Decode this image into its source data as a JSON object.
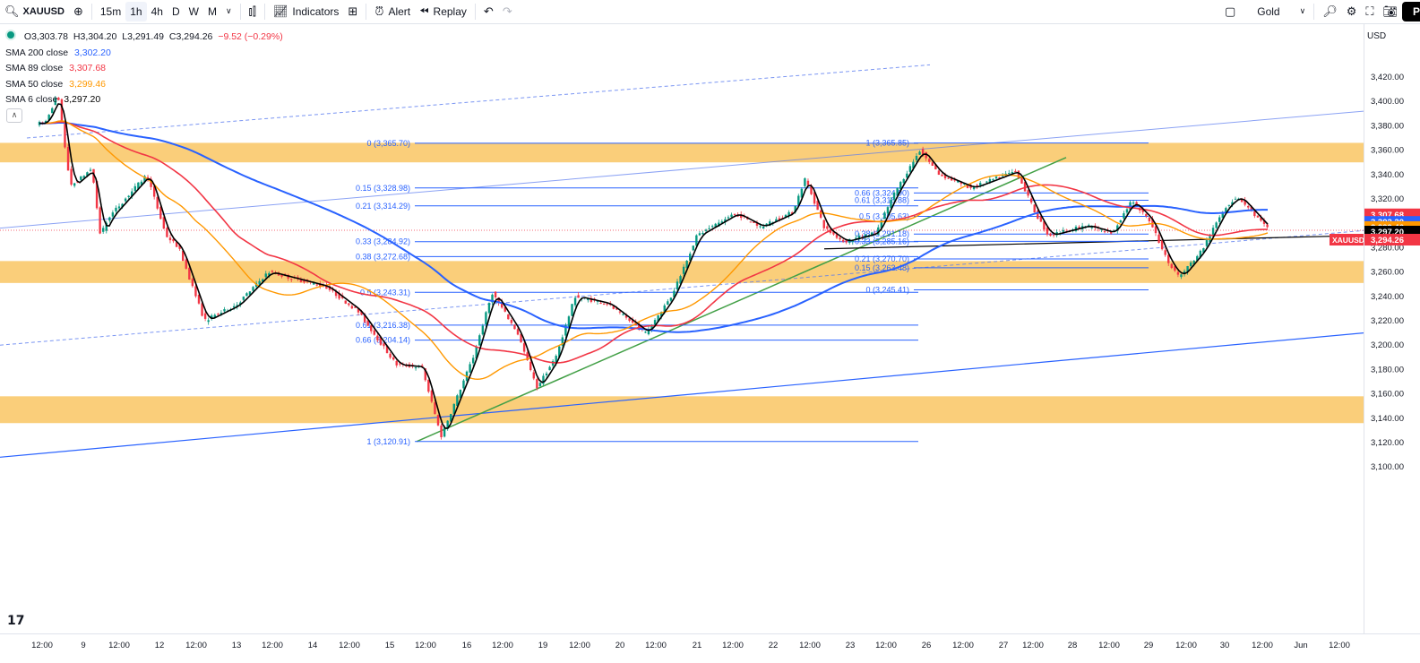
{
  "toolbar": {
    "symbol": "XAUUSD",
    "intervals": [
      "15m",
      "1h",
      "4h",
      "D",
      "W",
      "M"
    ],
    "selected_interval": "1h",
    "indicators_label": "Indicators",
    "alert_label": "Alert",
    "replay_label": "Replay",
    "layout_name": "Gold",
    "publish_label": "P"
  },
  "legend": {
    "ohlc": {
      "o": "O3,303.78",
      "h": "H3,304.20",
      "l": "L3,291.49",
      "c": "C3,294.26",
      "chg": "−9.52 (−0.29%)"
    },
    "smas": [
      {
        "label": "SMA 200 close",
        "value": "3,302.20",
        "color": "#2962ff"
      },
      {
        "label": "SMA 89 close",
        "value": "3,307.68",
        "color": "#f23645"
      },
      {
        "label": "SMA 50 close",
        "value": "3,299.46",
        "color": "#ff9800"
      },
      {
        "label": "SMA 6 close",
        "value": "3,297.20",
        "color": "#000000"
      }
    ]
  },
  "axis": {
    "currency": "USD",
    "price_ticks": [
      "3,420.00",
      "3,400.00",
      "3,380.00",
      "3,360.00",
      "3,340.00",
      "3,320.00",
      "3,300.00",
      "3,280.00",
      "3,260.00",
      "3,240.00",
      "3,220.00",
      "3,200.00",
      "3,180.00",
      "3,160.00",
      "3,140.00",
      "3,120.00",
      "3,100.00"
    ],
    "time_ticks": [
      "12:00",
      "9",
      "12:00",
      "12",
      "12:00",
      "13",
      "12:00",
      "14",
      "12:00",
      "15",
      "12:00",
      "16",
      "12:00",
      "19",
      "12:00",
      "20",
      "12:00",
      "21",
      "12:00",
      "22",
      "12:00",
      "23",
      "12:00",
      "26",
      "12:00",
      "27",
      "12:00",
      "28",
      "12:00",
      "29",
      "12:00",
      "30",
      "12:00",
      "Jun",
      "12:00"
    ],
    "badges": [
      {
        "label": "3,307.68",
        "color": "#f23645"
      },
      {
        "label": "3,302.20",
        "color": "#2962ff"
      },
      {
        "label": "3,299.46",
        "color": "#ff9800"
      },
      {
        "label": "3,297.20",
        "color": "#000000"
      },
      {
        "label": "3,294.26",
        "color": "#f23645"
      }
    ],
    "symbol_badge": "XAUUSD"
  },
  "fib_left": [
    "0 (3,365.70)",
    "0.15 (3,328.98)",
    "0.21 (3,314.29)",
    "0.33 (3,284.92)",
    "0.38 (3,272.68)",
    "0.5 (3,243.31)",
    "0.61 (3,216.38)",
    "0.66 (3,204.14)",
    "1 (3,120.91)"
  ],
  "fib_right": [
    "1 (3,365.85)",
    "0.66 (3,324.90)",
    "0.61 (3,318.88)",
    "0.5 (3,305.63)",
    "0.38 (3,291.18)",
    "0.33 (3,285.16)",
    "0.21 (3,270.70)",
    "0.15 (3,263.48)",
    "0 (3,245.41)"
  ],
  "zones": [
    {
      "top": 3366,
      "bottom": 3350
    },
    {
      "top": 3269,
      "bottom": 3251
    },
    {
      "top": 3158,
      "bottom": 3136
    }
  ],
  "colors": {
    "zone": "#f9c96c",
    "fib": "#2962ff",
    "sma200": "#2962ff",
    "sma89": "#f23645",
    "sma50": "#ff9800",
    "sma6": "#000000",
    "trend_green": "#43a047",
    "up": "#089981",
    "down": "#f23645"
  },
  "chart_data": {
    "type": "candlestick",
    "symbol": "XAUUSD",
    "interval": "1h",
    "ylim": [
      3100,
      3427
    ],
    "price_path": [
      {
        "x": "8 12:00",
        "y": 3382
      },
      {
        "x": "8 16:00",
        "y": 3406
      },
      {
        "x": "8 20:00",
        "y": 3330
      },
      {
        "x": "9 04:00",
        "y": 3345
      },
      {
        "x": "9 08:00",
        "y": 3290
      },
      {
        "x": "9 12:00",
        "y": 3305
      },
      {
        "x": "11 12:00",
        "y": 3340
      },
      {
        "x": "12 02:00",
        "y": 3290
      },
      {
        "x": "12 06:00",
        "y": 3280
      },
      {
        "x": "12 14:00",
        "y": 3220
      },
      {
        "x": "13 00:00",
        "y": 3233
      },
      {
        "x": "13 10:00",
        "y": 3260
      },
      {
        "x": "14 04:00",
        "y": 3248
      },
      {
        "x": "14 14:00",
        "y": 3228
      },
      {
        "x": "15 02:00",
        "y": 3184
      },
      {
        "x": "15 10:00",
        "y": 3182
      },
      {
        "x": "15 16:00",
        "y": 3125
      },
      {
        "x": "16 02:00",
        "y": 3190
      },
      {
        "x": "16 08:00",
        "y": 3243
      },
      {
        "x": "16 16:00",
        "y": 3210
      },
      {
        "x": "16 22:00",
        "y": 3165
      },
      {
        "x": "19 04:00",
        "y": 3190
      },
      {
        "x": "19 10:00",
        "y": 3240
      },
      {
        "x": "19 20:00",
        "y": 3234
      },
      {
        "x": "20 08:00",
        "y": 3210
      },
      {
        "x": "20 16:00",
        "y": 3240
      },
      {
        "x": "21 00:00",
        "y": 3290
      },
      {
        "x": "21 12:00",
        "y": 3308
      },
      {
        "x": "21 20:00",
        "y": 3297
      },
      {
        "x": "22 06:00",
        "y": 3309
      },
      {
        "x": "22 10:00",
        "y": 3337
      },
      {
        "x": "22 16:00",
        "y": 3296
      },
      {
        "x": "22 22:00",
        "y": 3285
      },
      {
        "x": "23 08:00",
        "y": 3292
      },
      {
        "x": "23 14:00",
        "y": 3325
      },
      {
        "x": "23 22:00",
        "y": 3360
      },
      {
        "x": "26 04:00",
        "y": 3340
      },
      {
        "x": "26 14:00",
        "y": 3329
      },
      {
        "x": "26 22:00",
        "y": 3337
      },
      {
        "x": "27 04:00",
        "y": 3343
      },
      {
        "x": "27 10:00",
        "y": 3308
      },
      {
        "x": "27 14:00",
        "y": 3290
      },
      {
        "x": "28 02:00",
        "y": 3298
      },
      {
        "x": "28 10:00",
        "y": 3292
      },
      {
        "x": "28 16:00",
        "y": 3318
      },
      {
        "x": "28 22:00",
        "y": 3302
      },
      {
        "x": "29 04:00",
        "y": 3268
      },
      {
        "x": "29 08:00",
        "y": 3256
      },
      {
        "x": "29 16:00",
        "y": 3278
      },
      {
        "x": "30 00:00",
        "y": 3313
      },
      {
        "x": "30 04:00",
        "y": 3322
      },
      {
        "x": "30 08:00",
        "y": 3311
      },
      {
        "x": "30 14:00",
        "y": 3294
      }
    ],
    "last_close": 3294.26
  }
}
